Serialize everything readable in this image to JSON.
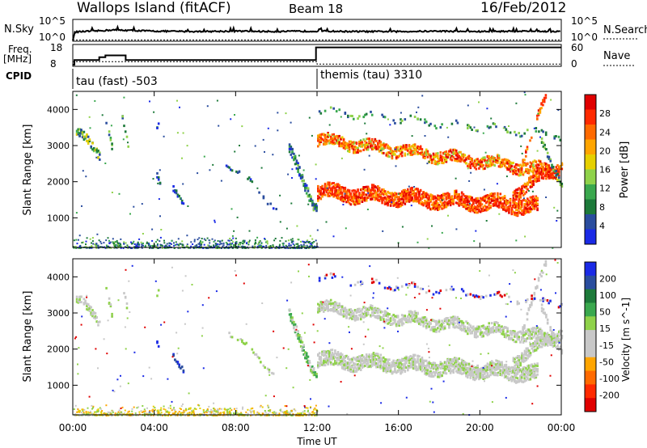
{
  "header": {
    "station": "Wallops Island (fitACF)",
    "beam": "Beam 18",
    "date": "16/Feb/2012"
  },
  "noise_panel": {
    "left_label": "N.Sky",
    "right_label": "N.Search",
    "left_ticks": [
      "10^5",
      "10^0"
    ],
    "right_ticks": [
      "10^5",
      "10^0"
    ]
  },
  "freq_panel": {
    "left_label_1": "Freq.",
    "left_label_2": "[MHz]",
    "right_label": "Nave",
    "left_ticks": [
      "18",
      "8"
    ],
    "right_ticks": [
      "60",
      "0"
    ]
  },
  "cpid": {
    "label": "CPID",
    "segments": [
      {
        "text": "tau (fast) -503",
        "start_hour": 0
      },
      {
        "text": "themis (tau) 3310",
        "start_hour": 12
      }
    ]
  },
  "x_axis": {
    "label": "Time UT",
    "ticks": [
      "00:00",
      "04:00",
      "08:00",
      "12:00",
      "16:00",
      "20:00",
      "00:00"
    ]
  },
  "chart_data": [
    {
      "type": "line",
      "title": "N.Sky / N.Search",
      "x_label": "Time UT",
      "x_range_hours": [
        0,
        24
      ],
      "series": [
        {
          "name": "N.Sky",
          "x": [
            0,
            0.1,
            1,
            2,
            4,
            6,
            8,
            10,
            12,
            14,
            16,
            18,
            20,
            22,
            24
          ],
          "y_log": [
            0,
            2.1,
            2.3,
            2.6,
            2.3,
            2.2,
            2.3,
            2.2,
            2.3,
            2.2,
            2.2,
            2.3,
            2.2,
            2.3,
            2.2
          ]
        },
        {
          "name": "N.Search",
          "style": "dotted",
          "y_log": [
            0.1,
            0.1
          ]
        }
      ],
      "ylim": [
        0,
        5
      ]
    },
    {
      "type": "line",
      "title": "Freq. / Nave",
      "series": [
        {
          "name": "Freq.",
          "unit": "MHz",
          "x": [
            0,
            0.08,
            0.08,
            1.3,
            1.3,
            1.6,
            1.6,
            2.6,
            2.6,
            11.95,
            11.95,
            24
          ],
          "y": [
            8,
            8,
            10.5,
            10.5,
            12,
            12,
            13,
            13,
            10.5,
            10.5,
            17.3,
            17.3
          ]
        },
        {
          "name": "Nave",
          "style": "dotted",
          "x": [
            0,
            12,
            12,
            24
          ],
          "y": [
            10,
            10,
            2,
            2
          ]
        }
      ],
      "ylim_left": [
        8,
        18
      ],
      "ylim_right": [
        0,
        60
      ]
    },
    {
      "type": "heatmap",
      "title": "Power",
      "ylabel": "Slant Range [km]",
      "xlabel": "Time UT",
      "x_range_hours": [
        0,
        24
      ],
      "ylim": [
        180,
        4500
      ],
      "y_ticks": [
        1000,
        2000,
        3000,
        4000
      ],
      "colorbar": {
        "label": "Power [dB]",
        "ticks": [
          "28",
          "24",
          "20",
          "16",
          "12",
          "8",
          "4"
        ],
        "colors": [
          "#e00000",
          "#ff2a00",
          "#ff6a00",
          "#ffa500",
          "#e6d000",
          "#8fd24a",
          "#3aa84e",
          "#1d7a3a",
          "#2a4d9e",
          "#1a2ae6"
        ]
      },
      "features": [
        {
          "name": "early-band",
          "t_start": 0.1,
          "t_end": 1.3,
          "r_start": 3400,
          "r_end": 2800
        },
        {
          "name": "streaks-1-3h",
          "t_start": 1.6,
          "t_end": 2.8,
          "r_start": 3900,
          "r_end": 2900
        },
        {
          "name": "patch-05h",
          "t_start": 4.8,
          "t_end": 5.4,
          "r_start": 1800,
          "r_end": 1500
        },
        {
          "name": "diagonal-10-12h",
          "t_start": 10.6,
          "t_end": 12.0,
          "r_start": 2900,
          "r_end": 1200
        },
        {
          "name": "upper-band-12-24h",
          "t_start": 12.0,
          "t_end": 23.8,
          "r_start": 3200,
          "r_end": 2200
        },
        {
          "name": "lower-band-12-24h",
          "t_start": 12.0,
          "t_end": 24.0,
          "r_start": 1700,
          "r_end": 1200
        },
        {
          "name": "ground-scatter-0-12h",
          "t_start": 0,
          "t_end": 12,
          "r_start": 400,
          "r_end": 180
        }
      ]
    },
    {
      "type": "heatmap",
      "title": "Velocity",
      "ylabel": "Slant Range [km]",
      "xlabel": "Time UT",
      "x_range_hours": [
        0,
        24
      ],
      "ylim": [
        180,
        4500
      ],
      "y_ticks": [
        1000,
        2000,
        3000,
        4000
      ],
      "colorbar": {
        "label": "Velocity [m s^-1]",
        "ticks": [
          "200",
          "100",
          "50",
          "15",
          "-15",
          "-50",
          "-100",
          "-200"
        ],
        "colors": [
          "#1a2ae6",
          "#2a4d9e",
          "#1d7a3a",
          "#3aa84e",
          "#8fd24a",
          "#c8c8c8",
          "#c8c8c8",
          "#ffa500",
          "#ff6a00",
          "#ff2a00",
          "#e00000"
        ]
      },
      "ground_scatter_color": "#c8c8c8"
    }
  ]
}
